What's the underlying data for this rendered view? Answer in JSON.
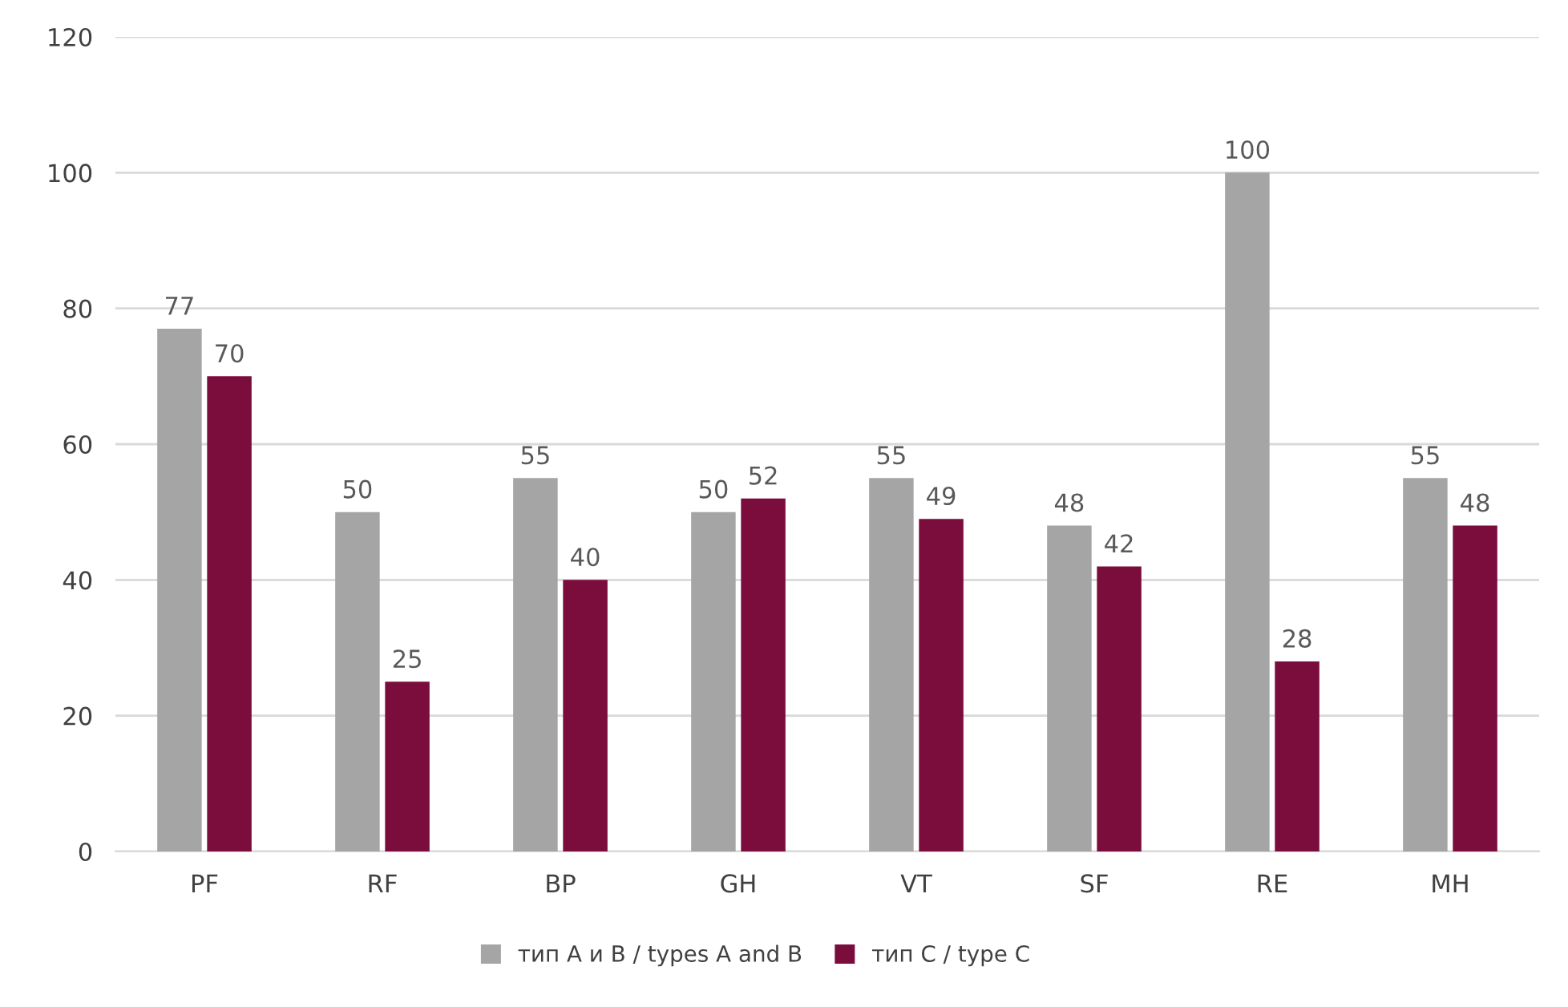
{
  "chart_data": {
    "type": "bar",
    "categories": [
      "PF",
      "RF",
      "BP",
      "GH",
      "VT",
      "SF",
      "RE",
      "MH"
    ],
    "series": [
      {
        "name": "тип A и B / types A and B",
        "color": "#a5a5a5",
        "values": [
          77,
          50,
          55,
          50,
          55,
          48,
          100,
          55
        ]
      },
      {
        "name": "тип C / type C",
        "color": "#7b0d3d",
        "values": [
          70,
          25,
          40,
          52,
          49,
          42,
          28,
          48
        ]
      }
    ],
    "ylim": [
      0,
      120
    ],
    "yticks": [
      0,
      20,
      40,
      60,
      80,
      100,
      120
    ],
    "grid": "y",
    "legend": "bottom",
    "data_labels": true
  }
}
